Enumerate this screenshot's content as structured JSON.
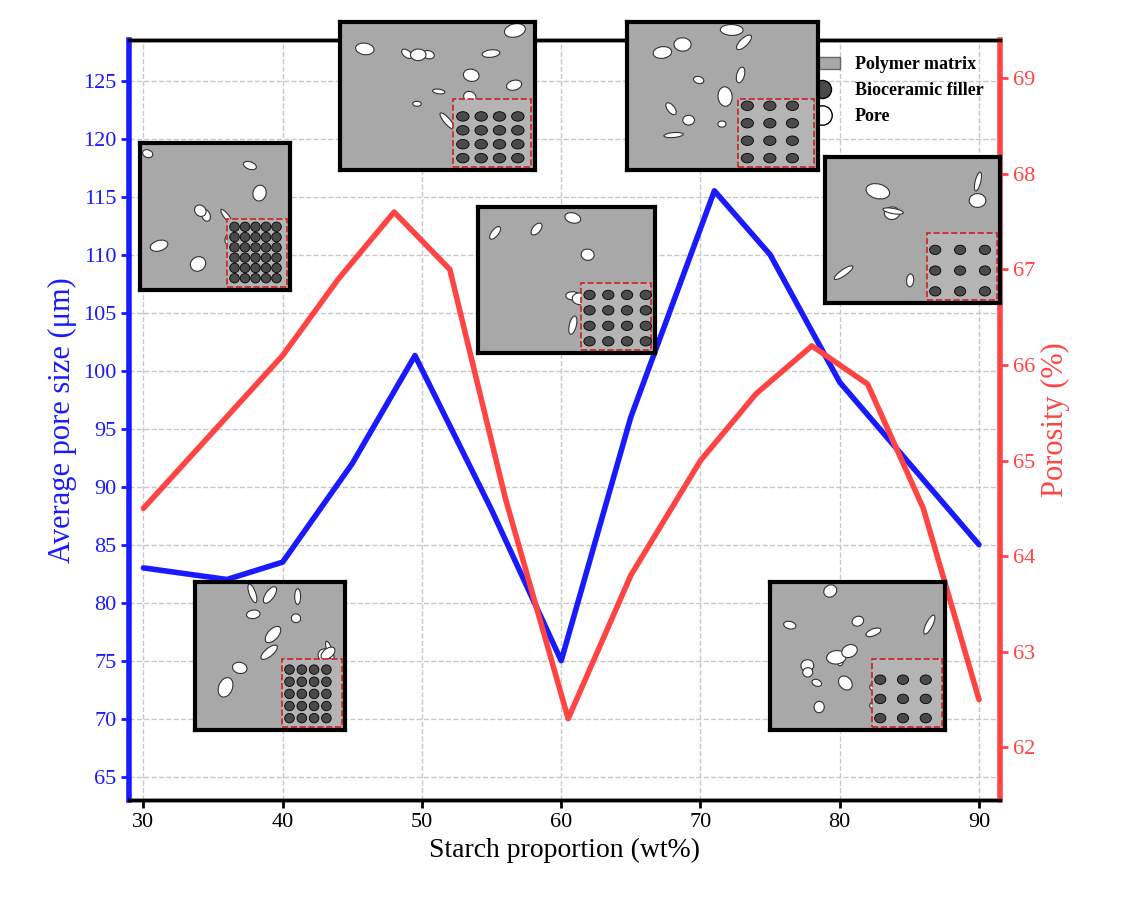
{
  "chart_data": {
    "type": "line",
    "x_label": "Starch proportion (wt%)",
    "y_label": "Average pore size (μm)",
    "y2_label": "Porosity (%)",
    "xlim": [
      29,
      91.5
    ],
    "xticks": [
      30,
      40,
      50,
      60,
      70,
      80,
      90
    ],
    "ylim": [
      63,
      128.5
    ],
    "yticks": [
      65,
      70,
      75,
      80,
      85,
      90,
      95,
      100,
      105,
      110,
      115,
      120,
      125
    ],
    "y2lim": [
      61.45,
      69.4
    ],
    "y2ticks": [
      62,
      63,
      64,
      65,
      66,
      67,
      68,
      69
    ],
    "grid": true,
    "legend": "upper right",
    "legend_items": [
      {
        "name": "Polymer matrix",
        "color": "#a8a8a8",
        "marker": "square"
      },
      {
        "name": "Bioceramic filler",
        "color": "#4a4a4a",
        "marker": "circle"
      },
      {
        "name": "Pore",
        "color": "#ffffff",
        "marker": "blob"
      }
    ],
    "series": [
      {
        "name": "Average pore size",
        "color": "#1a1aff",
        "axis": "y",
        "x": [
          30,
          36,
          40,
          45,
          49.5,
          55,
          60,
          65,
          71,
          75,
          80,
          85,
          90
        ],
        "values": [
          83,
          82,
          83.5,
          92,
          101.3,
          88,
          75,
          96,
          115.5,
          110,
          99,
          92,
          85
        ]
      },
      {
        "name": "Porosity",
        "color": "#ff4444",
        "axis": "y2",
        "x": [
          30,
          35,
          40,
          44,
          48,
          52,
          56,
          60.5,
          65,
          70,
          74,
          78,
          82,
          86,
          90
        ],
        "values": [
          64.5,
          65.3,
          66.1,
          66.9,
          67.6,
          67.0,
          64.6,
          62.3,
          63.8,
          65.0,
          65.7,
          66.2,
          65.8,
          64.5,
          62.5
        ]
      }
    ]
  }
}
